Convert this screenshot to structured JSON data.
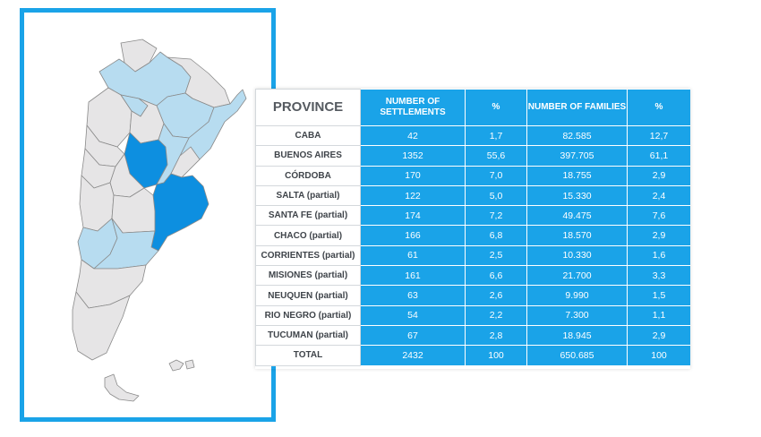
{
  "colors": {
    "accent_blue": "#1aa3e8",
    "highlight_dark_blue": "#0d8fe0",
    "highlight_light_blue": "#b7dcf0",
    "map_gray": "#e6e5e6",
    "province_text": "#3f444a"
  },
  "table": {
    "headers": {
      "province": "PROVINCE",
      "settlements": "NUMBER OF SETTLEMENTS",
      "settlements_pct": "%",
      "families": "NUMBER OF FAMILIES",
      "families_pct": "%"
    },
    "rows": [
      {
        "province": "CABA",
        "settlements": "42",
        "settlements_pct": "1,7",
        "families": "82.585",
        "families_pct": "12,7"
      },
      {
        "province": "BUENOS AIRES",
        "settlements": "1352",
        "settlements_pct": "55,6",
        "families": "397.705",
        "families_pct": "61,1"
      },
      {
        "province": "CÓRDOBA",
        "settlements": "170",
        "settlements_pct": "7,0",
        "families": "18.755",
        "families_pct": "2,9"
      },
      {
        "province": "SALTA (partial)",
        "settlements": "122",
        "settlements_pct": "5,0",
        "families": "15.330",
        "families_pct": "2,4"
      },
      {
        "province": "SANTA FE (partial)",
        "settlements": "174",
        "settlements_pct": "7,2",
        "families": "49.475",
        "families_pct": "7,6"
      },
      {
        "province": "CHACO (partial)",
        "settlements": "166",
        "settlements_pct": "6,8",
        "families": "18.570",
        "families_pct": "2,9"
      },
      {
        "province": "CORRIENTES (partial)",
        "settlements": "61",
        "settlements_pct": "2,5",
        "families": "10.330",
        "families_pct": "1,6"
      },
      {
        "province": "MISIONES (partial)",
        "settlements": "161",
        "settlements_pct": "6,6",
        "families": "21.700",
        "families_pct": "3,3"
      },
      {
        "province": "NEUQUEN (partial)",
        "settlements": "63",
        "settlements_pct": "2,6",
        "families": "9.990",
        "families_pct": "1,5"
      },
      {
        "province": "RIO NEGRO (partial)",
        "settlements": "54",
        "settlements_pct": "2,2",
        "families": "7.300",
        "families_pct": "1,1"
      },
      {
        "province": "TUCUMAN (partial)",
        "settlements": "67",
        "settlements_pct": "2,8",
        "families": "18.945",
        "families_pct": "2,9"
      },
      {
        "province": "TOTAL",
        "settlements": "2432",
        "settlements_pct": "100",
        "families": "650.685",
        "families_pct": "100"
      }
    ]
  }
}
